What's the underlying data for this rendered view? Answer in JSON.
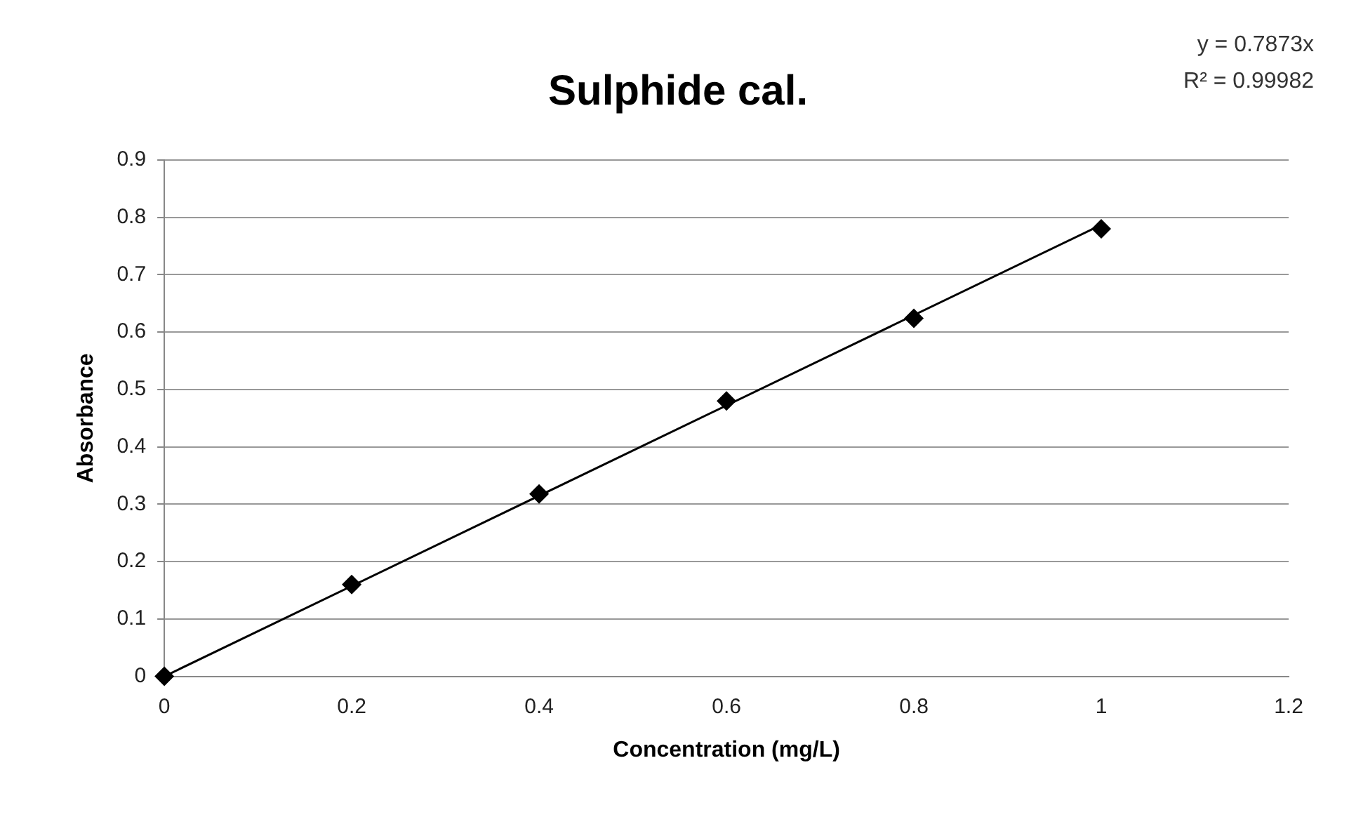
{
  "chart_data": {
    "type": "scatter",
    "title": "Sulphide cal.",
    "xlabel": "Concentration (mg/L)",
    "ylabel": "Absorbance",
    "annotations": [
      "y = 0.7873x",
      "R² = 0.99982"
    ],
    "series": [
      {
        "color": "#000000",
        "x": [
          0,
          0.2,
          0.4,
          0.6,
          0.8,
          1
        ],
        "values": [
          0,
          0.16,
          0.318,
          0.48,
          0.624,
          0.78
        ],
        "marker": "diamond"
      },
      {
        "type": "line",
        "color": "#000000",
        "x": [
          0,
          1
        ],
        "values": [
          0,
          0.787
        ],
        "marker": "none",
        "line_style": "solid"
      }
    ],
    "xlim": [
      0,
      1.2
    ],
    "xticks": [
      0,
      0.2,
      0.4,
      0.6,
      0.8,
      1,
      1.2
    ],
    "ylim": [
      0,
      0.9
    ],
    "yticks": [
      0,
      0.1,
      0.2,
      0.3,
      0.4,
      0.5,
      0.6,
      0.7,
      0.8,
      0.9
    ],
    "grid": "y",
    "legend": false
  }
}
